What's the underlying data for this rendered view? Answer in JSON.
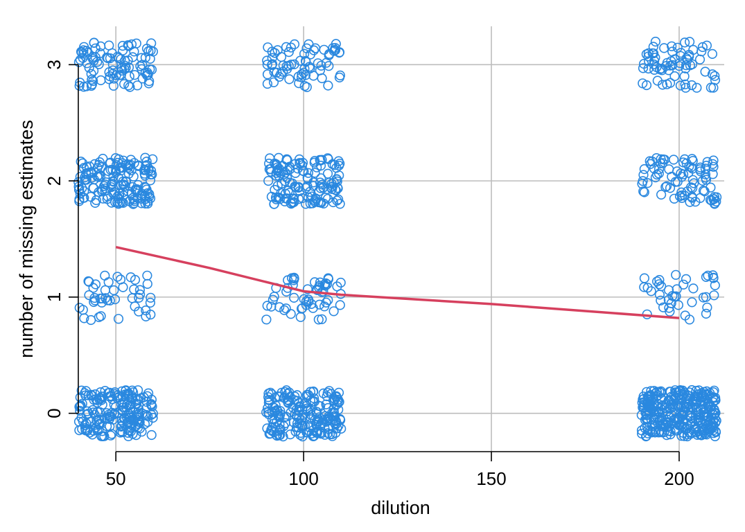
{
  "chart_data": {
    "type": "scatter",
    "title": "",
    "xlabel": "dilution",
    "ylabel": "number of missing estimates",
    "xlim": [
      40,
      212
    ],
    "ylim": [
      -0.33,
      3.33
    ],
    "x_ticks": [
      50,
      100,
      150,
      200
    ],
    "y_ticks": [
      0,
      1,
      2,
      3
    ],
    "x_tick_labels": [
      "50",
      "100",
      "150",
      "200"
    ],
    "y_tick_labels": [
      "0",
      "1",
      "2",
      "3"
    ],
    "grid": true,
    "legend": "none",
    "jitter": {
      "x": 10,
      "y": 0.2
    },
    "groups": [
      {
        "x": 50,
        "counts": {
          "0": 190,
          "1": 45,
          "2": 160,
          "3": 95
        }
      },
      {
        "x": 100,
        "counts": {
          "0": 200,
          "1": 55,
          "2": 140,
          "3": 70
        }
      },
      {
        "x": 200,
        "counts": {
          "0": 320,
          "1": 40,
          "2": 85,
          "3": 70
        }
      }
    ],
    "series": [
      {
        "type": "scatter",
        "marker": "open-circle",
        "color": "#2a88df"
      },
      {
        "type": "line",
        "color": "#d6405e",
        "x": [
          50,
          75,
          90,
          100,
          110,
          150,
          200
        ],
        "y": [
          1.43,
          1.25,
          1.13,
          1.05,
          1.02,
          0.94,
          0.82
        ]
      }
    ],
    "colors": {
      "points": "#2a88df",
      "line": "#d6405e",
      "grid": "#bdbdbd",
      "axis": "#000000"
    }
  }
}
